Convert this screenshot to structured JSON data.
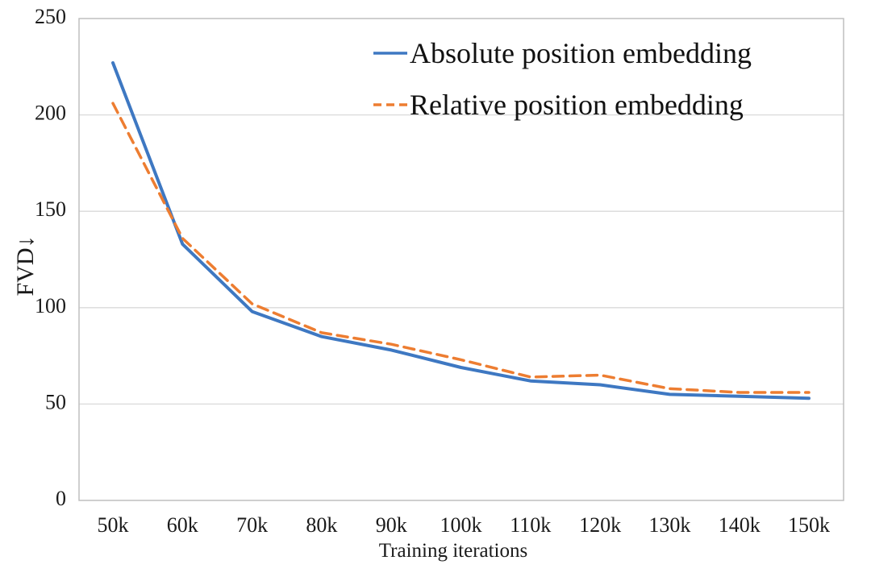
{
  "chart_data": {
    "type": "line",
    "categories": [
      "50k",
      "60k",
      "70k",
      "80k",
      "90k",
      "100k",
      "110k",
      "120k",
      "130k",
      "140k",
      "150k"
    ],
    "series": [
      {
        "name": "Absolute position embedding",
        "values": [
          227,
          133,
          98,
          85,
          78,
          69,
          62,
          60,
          55,
          54,
          53
        ],
        "color": "#3E78C2",
        "style": "solid"
      },
      {
        "name": "Relative position embedding",
        "values": [
          206,
          136,
          102,
          87,
          81,
          73,
          64,
          65,
          58,
          56,
          56
        ],
        "color": "#ED7D31",
        "style": "dashed"
      }
    ],
    "title": "",
    "xlabel": "Training iterations",
    "ylabel": "FVD↓",
    "ylim": [
      0,
      250
    ],
    "yticks": [
      0,
      50,
      100,
      150,
      200,
      250
    ],
    "grid": "horizontal",
    "legend_position": "top-right-inside"
  },
  "colors": {
    "gridline": "#D9D9D9",
    "plot_border": "#BFBFBF",
    "text": "#1a1a1a"
  }
}
